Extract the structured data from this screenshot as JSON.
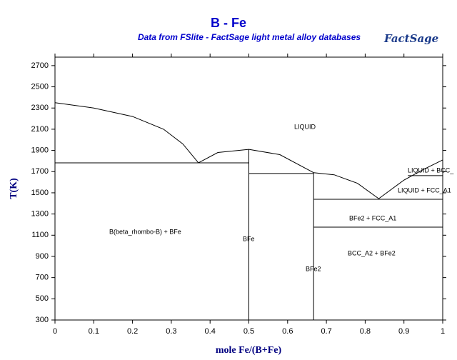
{
  "chart_data": {
    "type": "line",
    "title": "B - Fe",
    "subtitle": "Data from FSlite - FactSage light metal alloy databases",
    "logo": "FactSage",
    "xlabel": "mole Fe/(B+Fe)",
    "ylabel": "T(K)",
    "xlim": [
      0,
      1
    ],
    "ylim": [
      300,
      2780
    ],
    "xticks": [
      0,
      0.1,
      0.2,
      0.3,
      0.4,
      0.5,
      0.6,
      0.7,
      0.8,
      0.9,
      1
    ],
    "yticks": [
      300,
      500,
      700,
      900,
      1100,
      1300,
      1500,
      1700,
      1900,
      2100,
      2300,
      2500,
      2700
    ],
    "series": [
      {
        "color": "#000000",
        "x": [
          0,
          0.1,
          0.2,
          0.28,
          0.33,
          0.37
        ],
        "values": [
          2350,
          2300,
          2220,
          2100,
          1960,
          1783
        ]
      },
      {
        "color": "#000000",
        "x": [
          0.37,
          0.42,
          0.5,
          0.58,
          0.667
        ],
        "values": [
          1783,
          1880,
          1910,
          1860,
          1690
        ]
      },
      {
        "color": "#000000",
        "x": [
          0.667,
          0.72,
          0.78,
          0.835
        ],
        "values": [
          1690,
          1670,
          1590,
          1445
        ]
      },
      {
        "color": "#000000",
        "x": [
          0.835,
          0.9,
          0.95,
          1
        ],
        "values": [
          1445,
          1620,
          1720,
          1810
        ]
      },
      {
        "color": "#000000",
        "x": [
          0,
          0.5
        ],
        "values": [
          1783,
          1783
        ]
      },
      {
        "color": "#000000",
        "x": [
          0.5,
          0.5
        ],
        "values": [
          300,
          1910
        ]
      },
      {
        "color": "#000000",
        "x": [
          0.5,
          0.667
        ],
        "values": [
          1682,
          1682
        ]
      },
      {
        "color": "#000000",
        "x": [
          0.667,
          0.667
        ],
        "values": [
          300,
          1690
        ]
      },
      {
        "color": "#000000",
        "x": [
          0.667,
          1
        ],
        "values": [
          1439,
          1439
        ]
      },
      {
        "color": "#000000",
        "x": [
          0.667,
          1
        ],
        "values": [
          1176,
          1176
        ]
      },
      {
        "color": "#000000",
        "x": [
          0.91,
          1
        ],
        "values": [
          1662,
          1662
        ]
      }
    ],
    "annotations": [
      "LIQUID",
      "LIQUID + BCC_",
      "LIQUID + FCC_A1",
      "BFe2 + FCC_A1",
      "B(beta_rhombo-B) + BFe",
      "BFe",
      "BCC_A2 + BFe2",
      "BFe2"
    ]
  }
}
